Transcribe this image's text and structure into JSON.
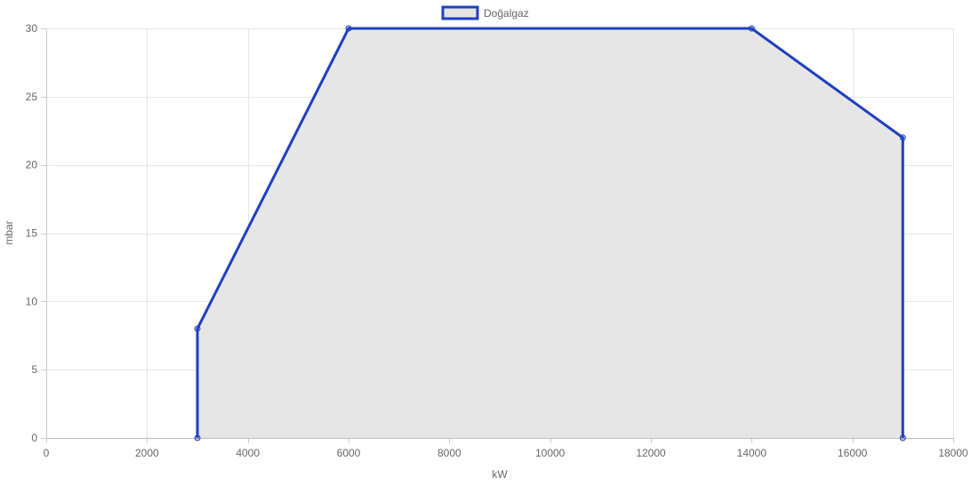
{
  "chart_data": {
    "type": "area",
    "xlabel": "kW",
    "ylabel": "mbar",
    "xlim": [
      0,
      18000
    ],
    "ylim": [
      0,
      30
    ],
    "x_ticks": [
      0,
      2000,
      4000,
      6000,
      8000,
      10000,
      12000,
      14000,
      16000,
      18000
    ],
    "y_ticks": [
      0,
      5,
      10,
      15,
      20,
      25,
      30
    ],
    "grid": true,
    "legend_position": "top",
    "series": [
      {
        "name": "Doğalgaz",
        "color": "#1f3fbf",
        "fill": "#e3e3e3",
        "points": [
          {
            "x": 3000,
            "y": 0
          },
          {
            "x": 3000,
            "y": 8
          },
          {
            "x": 6000,
            "y": 30
          },
          {
            "x": 14000,
            "y": 30
          },
          {
            "x": 17000,
            "y": 22
          },
          {
            "x": 17000,
            "y": 0
          }
        ]
      }
    ]
  }
}
